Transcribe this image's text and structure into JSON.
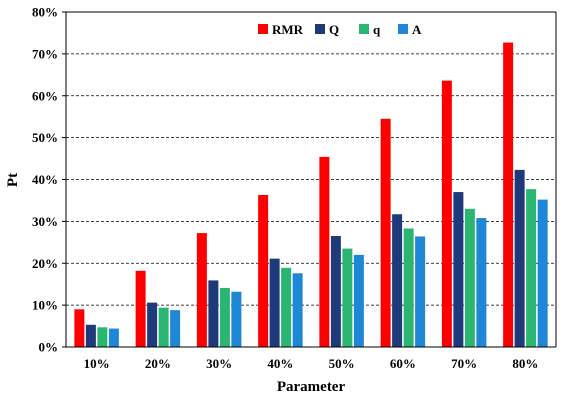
{
  "chart_data": {
    "type": "bar",
    "title": "",
    "xlabel": "Parameter",
    "ylabel": "Pt",
    "categories": [
      "10%",
      "20%",
      "30%",
      "40%",
      "50%",
      "60%",
      "70%",
      "80%"
    ],
    "ylim": [
      0,
      80
    ],
    "yticks": [
      0,
      10,
      20,
      30,
      40,
      50,
      60,
      70,
      80
    ],
    "ytick_labels": [
      "0%",
      "10%",
      "20%",
      "30%",
      "40%",
      "50%",
      "60%",
      "70%",
      "80%"
    ],
    "grid": "horizontal dashed",
    "legend_position": "top-center",
    "series": [
      {
        "name": "RMR",
        "color": "#ff0000",
        "values": [
          9.0,
          18.2,
          27.2,
          36.3,
          45.4,
          54.5,
          63.6,
          72.7
        ]
      },
      {
        "name": "Q",
        "color": "#1f3a7a",
        "values": [
          5.3,
          10.6,
          15.9,
          21.1,
          26.5,
          31.7,
          37.0,
          42.3
        ]
      },
      {
        "name": "q",
        "color": "#2bb573",
        "values": [
          4.7,
          9.4,
          14.1,
          18.9,
          23.5,
          28.3,
          33.0,
          37.7
        ]
      },
      {
        "name": "A",
        "color": "#1f88d6",
        "values": [
          4.4,
          8.8,
          13.2,
          17.6,
          22.0,
          26.4,
          30.8,
          35.2
        ]
      }
    ]
  }
}
